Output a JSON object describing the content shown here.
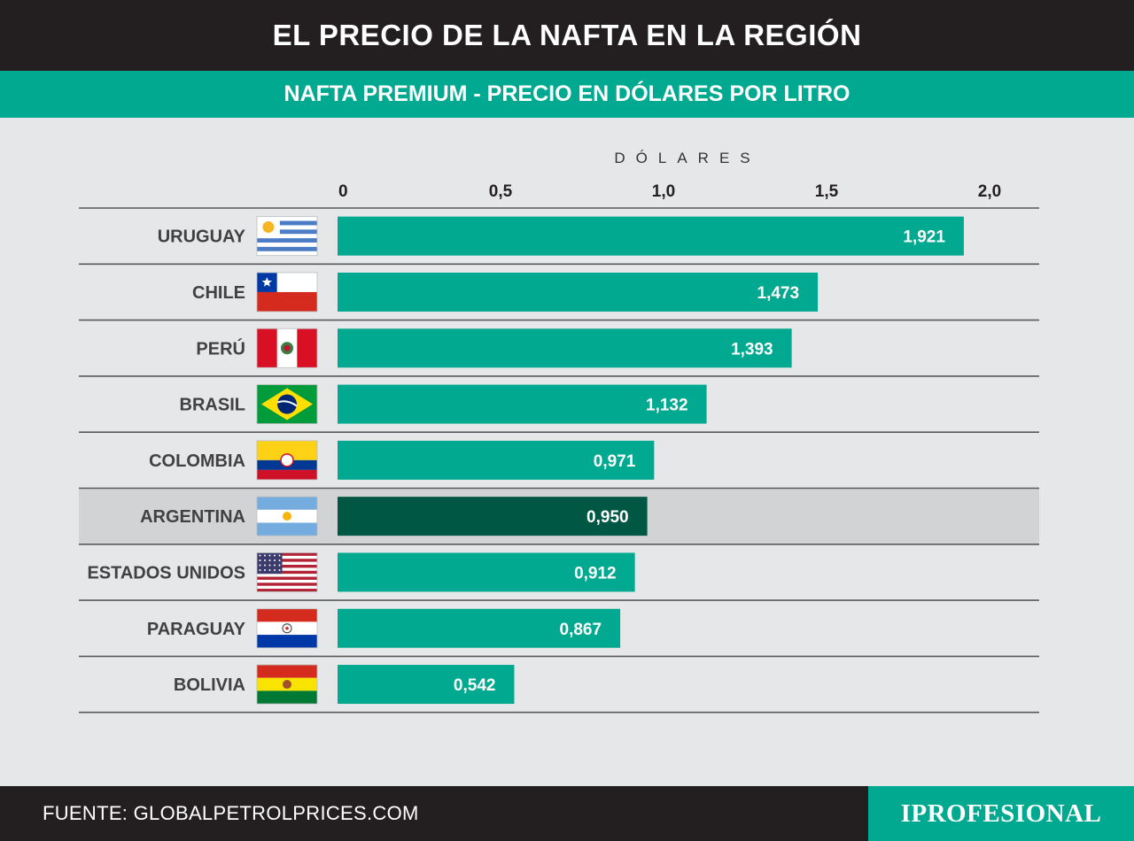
{
  "header": {
    "title": "EL PRECIO DE LA NAFTA EN LA REGIÓN"
  },
  "subheader": {
    "title": "NAFTA PREMIUM - PRECIO EN DÓLARES POR LITRO"
  },
  "footer": {
    "source": "FUENTE: GLOBALPETROLPRICES.COM",
    "brand": "IPROFESIONAL"
  },
  "colors": {
    "bar": "#00a98f",
    "bar_highlight": "#005844",
    "highlight_row": "#d1d3d4",
    "background": "#e6e7e8"
  },
  "chart_data": {
    "type": "bar",
    "orientation": "horizontal",
    "xlabel": "DÓLARES",
    "xlim": [
      0,
      2.0
    ],
    "ticks": [
      0,
      0.5,
      1.0,
      1.5,
      2.0
    ],
    "tick_labels": [
      "0",
      "0,5",
      "1,0",
      "1,5",
      "2,0"
    ],
    "categories": [
      "URUGUAY",
      "CHILE",
      "PERÚ",
      "BRASIL",
      "COLOMBIA",
      "ARGENTINA",
      "ESTADOS UNIDOS",
      "PARAGUAY",
      "BOLIVIA"
    ],
    "values": [
      1.921,
      1.473,
      1.393,
      1.132,
      0.971,
      0.95,
      0.912,
      0.867,
      0.542
    ],
    "value_labels": [
      "1,921",
      "1,473",
      "1,393",
      "1,132",
      "0,971",
      "0,950",
      "0,912",
      "0,867",
      "0,542"
    ],
    "flags": [
      "uruguay-flag-icon",
      "chile-flag-icon",
      "peru-flag-icon",
      "brazil-flag-icon",
      "colombia-flag-icon",
      "argentina-flag-icon",
      "usa-flag-icon",
      "paraguay-flag-icon",
      "bolivia-flag-icon"
    ],
    "highlight": "ARGENTINA",
    "grid": false
  }
}
